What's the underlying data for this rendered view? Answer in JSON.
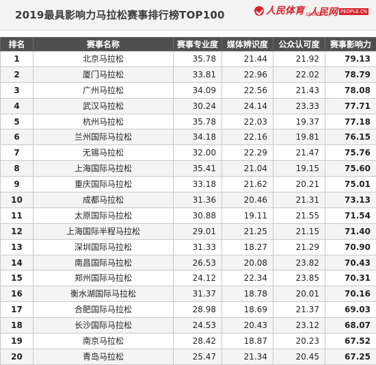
{
  "header": {
    "title": "2019最具影响力马拉松赛事排行榜TOP100",
    "logo1_text": "人民体育",
    "logo1_sub": "sports",
    "logo2_text": "人民网",
    "logo2_box": "PEOPLE.CN"
  },
  "table": {
    "columns": [
      "排名",
      "赛事名称",
      "赛事专业度",
      "媒体辨识度",
      "公众认可度",
      "赛事影响力"
    ],
    "rows": [
      {
        "rank": "1",
        "name": "北京马拉松",
        "pro": "35.78",
        "media": "21.44",
        "public": "21.92",
        "impact": "79.13"
      },
      {
        "rank": "2",
        "name": "厦门马拉松",
        "pro": "33.81",
        "media": "22.96",
        "public": "22.02",
        "impact": "78.79"
      },
      {
        "rank": "3",
        "name": "广州马拉松",
        "pro": "34.09",
        "media": "22.56",
        "public": "21.43",
        "impact": "78.08"
      },
      {
        "rank": "4",
        "name": "武汉马拉松",
        "pro": "30.24",
        "media": "24.14",
        "public": "23.33",
        "impact": "77.71"
      },
      {
        "rank": "5",
        "name": "杭州马拉松",
        "pro": "35.78",
        "media": "22.03",
        "public": "19.37",
        "impact": "77.18"
      },
      {
        "rank": "6",
        "name": "兰州国际马拉松",
        "pro": "34.18",
        "media": "22.16",
        "public": "19.81",
        "impact": "76.15"
      },
      {
        "rank": "7",
        "name": "无锡马拉松",
        "pro": "32.00",
        "media": "22.29",
        "public": "21.47",
        "impact": "75.76"
      },
      {
        "rank": "8",
        "name": "上海国际马拉松",
        "pro": "35.41",
        "media": "21.04",
        "public": "19.15",
        "impact": "75.60"
      },
      {
        "rank": "9",
        "name": "重庆国际马拉松",
        "pro": "33.18",
        "media": "21.62",
        "public": "20.21",
        "impact": "75.01"
      },
      {
        "rank": "10",
        "name": "成都马拉松",
        "pro": "31.36",
        "media": "20.46",
        "public": "21.31",
        "impact": "73.13"
      },
      {
        "rank": "11",
        "name": "太原国际马拉松",
        "pro": "30.88",
        "media": "19.11",
        "public": "21.55",
        "impact": "71.54"
      },
      {
        "rank": "12",
        "name": "上海国际半程马拉松",
        "pro": "29.01",
        "media": "21.25",
        "public": "21.15",
        "impact": "71.40"
      },
      {
        "rank": "13",
        "name": "深圳国际马拉松",
        "pro": "31.33",
        "media": "18.27",
        "public": "21.29",
        "impact": "70.90"
      },
      {
        "rank": "14",
        "name": "南昌国际马拉松",
        "pro": "26.53",
        "media": "20.08",
        "public": "23.82",
        "impact": "70.43"
      },
      {
        "rank": "15",
        "name": "郑州国际马拉松",
        "pro": "24.12",
        "media": "22.34",
        "public": "23.85",
        "impact": "70.31"
      },
      {
        "rank": "16",
        "name": "衡水湖国际马拉松",
        "pro": "31.37",
        "media": "18.78",
        "public": "20.01",
        "impact": "70.16"
      },
      {
        "rank": "17",
        "name": "合肥国际马拉松",
        "pro": "28.98",
        "media": "18.69",
        "public": "21.37",
        "impact": "69.03"
      },
      {
        "rank": "18",
        "name": "长沙国际马拉松",
        "pro": "24.53",
        "media": "20.43",
        "public": "23.12",
        "impact": "68.07"
      },
      {
        "rank": "19",
        "name": "南京马拉松",
        "pro": "28.42",
        "media": "18.87",
        "public": "20.23",
        "impact": "67.52"
      },
      {
        "rank": "20",
        "name": "青岛马拉松",
        "pro": "25.47",
        "media": "21.34",
        "public": "20.45",
        "impact": "67.25"
      }
    ]
  },
  "colors": {
    "header_bg": "#4f4f4f",
    "brand_red": "#d6242a"
  }
}
